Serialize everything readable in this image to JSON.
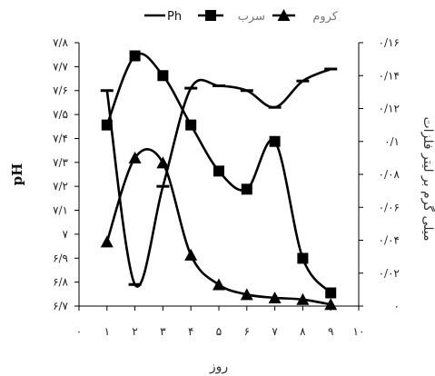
{
  "chart_data": {
    "type": "line",
    "title": "",
    "xlabel": "روز",
    "ylabel_left": "pH",
    "ylabel_right": "میلی گرم بر لیتر فلزات",
    "x_ticks": [
      "۰",
      "۱",
      "۲",
      "۳",
      "۴",
      "۵",
      "۶",
      "۷",
      "۸",
      "۹",
      "۱۰"
    ],
    "xlim": [
      0,
      10
    ],
    "left_ticks": [
      "۶/۷",
      "۶/۸",
      "۶/۹",
      "۷",
      "۷/۱",
      "۷/۲",
      "۷/۳",
      "۷/۴",
      "۷/۵",
      "۷/۶",
      "۷/۷",
      "۷/۸"
    ],
    "left_ylim": [
      6.7,
      7.8
    ],
    "right_ticks": [
      "۰",
      "۰/۰۲",
      "۰/۰۴",
      "۰/۰۶",
      "۰/۰۸",
      "۰/۱",
      "۰/۱۲",
      "۰/۱۴",
      "۰/۱۶"
    ],
    "right_ylim": [
      0,
      0.16
    ],
    "legend_position": "top",
    "grid": false,
    "series": [
      {
        "name": "Ph",
        "marker": "dash",
        "axis": "left",
        "x": [
          1,
          2,
          3,
          4,
          5,
          6,
          7,
          8,
          9
        ],
        "values": [
          7.6,
          6.79,
          7.2,
          7.61,
          7.62,
          7.6,
          7.53,
          7.64,
          7.69
        ]
      },
      {
        "name": "سرب",
        "marker": "square",
        "axis": "right",
        "x": [
          1,
          2,
          3,
          4,
          5,
          6,
          7,
          8,
          9
        ],
        "values": [
          0.11,
          0.152,
          0.14,
          0.11,
          0.082,
          0.071,
          0.1,
          0.029,
          0.008
        ]
      },
      {
        "name": "کروم",
        "marker": "triangle",
        "axis": "right",
        "x": [
          1,
          2,
          3,
          4,
          5,
          6,
          7,
          8,
          9
        ],
        "values": [
          0.039,
          0.09,
          0.087,
          0.031,
          0.013,
          0.007,
          0.005,
          0.004,
          0.001
        ]
      }
    ]
  }
}
